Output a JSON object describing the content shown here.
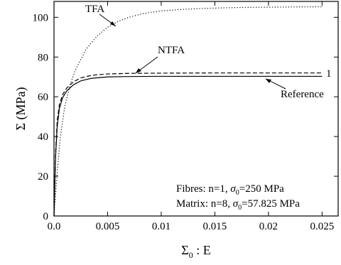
{
  "chart_data": {
    "type": "line",
    "xlabel": {
      "base": "Σ",
      "sub": "0",
      "rest": " : E"
    },
    "ylabel": "Σ  (MPa)",
    "xlim": [
      0,
      0.0265
    ],
    "ylim": [
      0,
      108
    ],
    "x_ticks": [
      {
        "value": 0,
        "label": "0.0"
      },
      {
        "value": 0.005,
        "label": "0.005"
      },
      {
        "value": 0.01,
        "label": "0.01"
      },
      {
        "value": 0.015,
        "label": "0.015"
      },
      {
        "value": 0.02,
        "label": "0.02"
      },
      {
        "value": 0.025,
        "label": "0.025"
      }
    ],
    "y_ticks": [
      {
        "value": 0,
        "label": "0"
      },
      {
        "value": 20,
        "label": "20"
      },
      {
        "value": 40,
        "label": "40"
      },
      {
        "value": 60,
        "label": "60"
      },
      {
        "value": 80,
        "label": "80"
      },
      {
        "value": 100,
        "label": "100"
      }
    ],
    "series": [
      {
        "name": "TFA",
        "style": "dotted",
        "x": [
          0,
          0.0003,
          0.0006,
          0.001,
          0.0015,
          0.002,
          0.003,
          0.004,
          0.005,
          0.006,
          0.007,
          0.008,
          0.009,
          0.01,
          0.012,
          0.014,
          0.016,
          0.018,
          0.02,
          0.022,
          0.025
        ],
        "y": [
          0,
          22,
          40,
          55,
          66,
          73.5,
          84,
          90.5,
          95,
          98,
          100,
          101.5,
          102.5,
          103.2,
          104,
          104.5,
          104.8,
          105,
          105.1,
          105.2,
          105.3
        ]
      },
      {
        "name": "NTFA",
        "style": "dashed",
        "x": [
          0,
          0.00015,
          0.0003,
          0.0005,
          0.0008,
          0.0012,
          0.0018,
          0.0025,
          0.0035,
          0.005,
          0.007,
          0.01,
          0.015,
          0.02,
          0.025
        ],
        "y": [
          0,
          32,
          48,
          56,
          61,
          64.5,
          67.5,
          69.5,
          70.8,
          71.5,
          71.8,
          71.9,
          72,
          72,
          72
        ]
      },
      {
        "name": "Reference",
        "style": "solid",
        "x": [
          0,
          0.00015,
          0.0003,
          0.0005,
          0.0008,
          0.0012,
          0.0018,
          0.0025,
          0.0035,
          0.005,
          0.007,
          0.01,
          0.015,
          0.02,
          0.025
        ],
        "y": [
          0,
          30,
          45,
          54,
          59.5,
          63,
          66,
          68,
          69.3,
          70,
          70.2,
          70.3,
          70.3,
          70.3,
          70.3
        ]
      }
    ],
    "annotations": [
      {
        "text": "TFA",
        "series": "TFA"
      },
      {
        "text": "NTFA",
        "series": "NTFA"
      },
      {
        "text": "1",
        "series": "NTFA"
      },
      {
        "text": "Reference",
        "series": "Reference"
      }
    ],
    "legend": {
      "line1": {
        "pre": "Fibres: n=1, ",
        "sym": "σ",
        "sub": "0",
        "post": "=250 MPa"
      },
      "line2": {
        "pre": "Matrix: n=8, ",
        "sym": "σ",
        "sub": "0",
        "post": "=57.825 MPa"
      }
    }
  }
}
